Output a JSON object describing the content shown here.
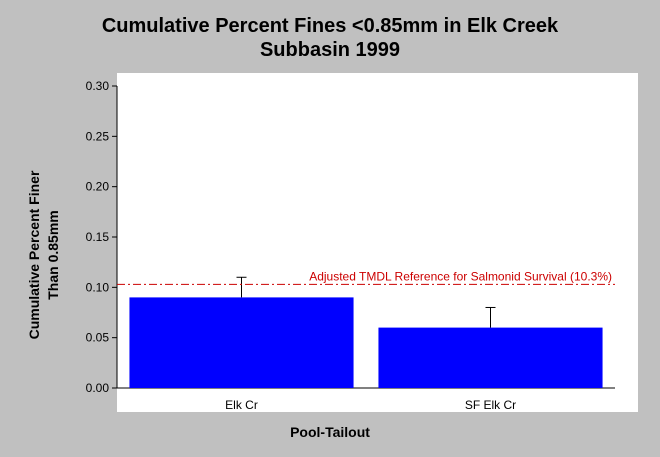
{
  "chart_data": {
    "type": "bar",
    "title": "Cumulative Percent Fines <0.85mm in Elk Creek Subbasin 1999",
    "title_lines": [
      "Cumulative Percent Fines <0.85mm in Elk Creek",
      "Subbasin 1999"
    ],
    "xlabel": "Pool-Tailout",
    "ylabel": "Cumulative Percent Finer Than 0.85mm",
    "ylabel_lines": [
      "Cumulative Percent Finer",
      "Than 0.85mm"
    ],
    "categories": [
      "Elk Cr",
      "SF Elk Cr"
    ],
    "values": [
      0.09,
      0.06
    ],
    "error_upper": [
      0.11,
      0.08
    ],
    "ylim": [
      0,
      0.3
    ],
    "yticks": [
      "0.00",
      "0.05",
      "0.10",
      "0.15",
      "0.20",
      "0.25",
      "0.30"
    ],
    "bar_color": "#0000ff",
    "grid": false,
    "reference_line": {
      "value": 0.103,
      "label": "Adjusted TMDL Reference for Salmonid Survival (10.3%)",
      "color": "#cc0000",
      "style": "dash-dot"
    }
  }
}
